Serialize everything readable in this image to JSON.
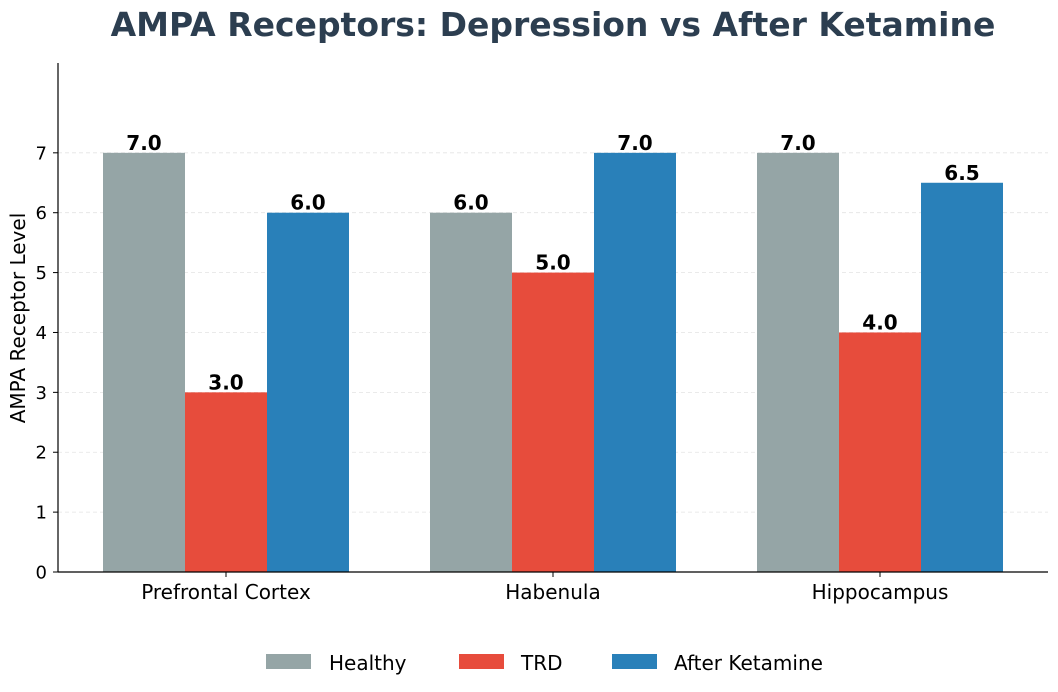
{
  "chart_data": {
    "type": "bar",
    "title": "AMPA Receptors: Depression vs After Ketamine",
    "xlabel": "",
    "ylabel": "AMPA Receptor Level",
    "categories": [
      "Prefrontal Cortex",
      "Habenula",
      "Hippocampus"
    ],
    "series": [
      {
        "name": "Healthy",
        "color": "#95a5a6",
        "values": [
          7.0,
          6.0,
          7.0
        ]
      },
      {
        "name": "TRD",
        "color": "#e74c3c",
        "values": [
          3.0,
          5.0,
          4.0
        ]
      },
      {
        "name": "After Ketamine",
        "color": "#2980b9",
        "values": [
          6.0,
          7.0,
          6.5
        ]
      }
    ],
    "ylim": [
      0,
      8.5
    ],
    "yticks": [
      0,
      1,
      2,
      3,
      4,
      5,
      6,
      7
    ],
    "grid": "y-dashed",
    "legend_position": "bottom-center",
    "data_labels_format": "one-decimal"
  }
}
